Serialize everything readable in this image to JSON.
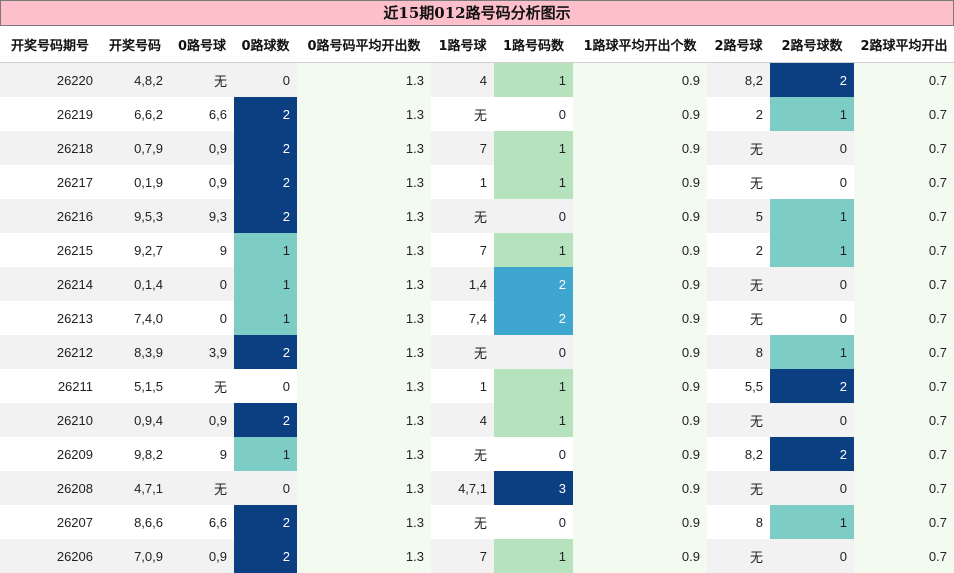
{
  "title": "近15期012路号码分析图示",
  "headers": [
    "开奖号码期号",
    "开奖号码",
    "0路号球",
    "0路球数",
    "0路号码平均开出数",
    "1路号球",
    "1路号码数",
    "1路球平均开出个数",
    "2路号球",
    "2路号球数",
    "2路球平均开出"
  ],
  "rows": [
    {
      "issue": "26220",
      "nums": "4,8,2",
      "r0": "无",
      "r0n": "0",
      "r0avg": "1.3",
      "r1": "4",
      "r1n": "1",
      "r1avg": "0.9",
      "r2": "8,2",
      "r2n": "2",
      "r2avg": "0.7"
    },
    {
      "issue": "26219",
      "nums": "6,6,2",
      "r0": "6,6",
      "r0n": "2",
      "r0avg": "1.3",
      "r1": "无",
      "r1n": "0",
      "r1avg": "0.9",
      "r2": "2",
      "r2n": "1",
      "r2avg": "0.7"
    },
    {
      "issue": "26218",
      "nums": "0,7,9",
      "r0": "0,9",
      "r0n": "2",
      "r0avg": "1.3",
      "r1": "7",
      "r1n": "1",
      "r1avg": "0.9",
      "r2": "无",
      "r2n": "0",
      "r2avg": "0.7"
    },
    {
      "issue": "26217",
      "nums": "0,1,9",
      "r0": "0,9",
      "r0n": "2",
      "r0avg": "1.3",
      "r1": "1",
      "r1n": "1",
      "r1avg": "0.9",
      "r2": "无",
      "r2n": "0",
      "r2avg": "0.7"
    },
    {
      "issue": "26216",
      "nums": "9,5,3",
      "r0": "9,3",
      "r0n": "2",
      "r0avg": "1.3",
      "r1": "无",
      "r1n": "0",
      "r1avg": "0.9",
      "r2": "5",
      "r2n": "1",
      "r2avg": "0.7"
    },
    {
      "issue": "26215",
      "nums": "9,2,7",
      "r0": "9",
      "r0n": "1",
      "r0avg": "1.3",
      "r1": "7",
      "r1n": "1",
      "r1avg": "0.9",
      "r2": "2",
      "r2n": "1",
      "r2avg": "0.7"
    },
    {
      "issue": "26214",
      "nums": "0,1,4",
      "r0": "0",
      "r0n": "1",
      "r0avg": "1.3",
      "r1": "1,4",
      "r1n": "2",
      "r1avg": "0.9",
      "r2": "无",
      "r2n": "0",
      "r2avg": "0.7"
    },
    {
      "issue": "26213",
      "nums": "7,4,0",
      "r0": "0",
      "r0n": "1",
      "r0avg": "1.3",
      "r1": "7,4",
      "r1n": "2",
      "r1avg": "0.9",
      "r2": "无",
      "r2n": "0",
      "r2avg": "0.7"
    },
    {
      "issue": "26212",
      "nums": "8,3,9",
      "r0": "3,9",
      "r0n": "2",
      "r0avg": "1.3",
      "r1": "无",
      "r1n": "0",
      "r1avg": "0.9",
      "r2": "8",
      "r2n": "1",
      "r2avg": "0.7"
    },
    {
      "issue": "26211",
      "nums": "5,1,5",
      "r0": "无",
      "r0n": "0",
      "r0avg": "1.3",
      "r1": "1",
      "r1n": "1",
      "r1avg": "0.9",
      "r2": "5,5",
      "r2n": "2",
      "r2avg": "0.7"
    },
    {
      "issue": "26210",
      "nums": "0,9,4",
      "r0": "0,9",
      "r0n": "2",
      "r0avg": "1.3",
      "r1": "4",
      "r1n": "1",
      "r1avg": "0.9",
      "r2": "无",
      "r2n": "0",
      "r2avg": "0.7"
    },
    {
      "issue": "26209",
      "nums": "9,8,2",
      "r0": "9",
      "r0n": "1",
      "r0avg": "1.3",
      "r1": "无",
      "r1n": "0",
      "r1avg": "0.9",
      "r2": "8,2",
      "r2n": "2",
      "r2avg": "0.7"
    },
    {
      "issue": "26208",
      "nums": "4,7,1",
      "r0": "无",
      "r0n": "0",
      "r0avg": "1.3",
      "r1": "4,7,1",
      "r1n": "3",
      "r1avg": "0.9",
      "r2": "无",
      "r2n": "0",
      "r2avg": "0.7"
    },
    {
      "issue": "26207",
      "nums": "8,6,6",
      "r0": "6,6",
      "r0n": "2",
      "r0avg": "1.3",
      "r1": "无",
      "r1n": "0",
      "r1avg": "0.9",
      "r2": "8",
      "r2n": "1",
      "r2avg": "0.7"
    },
    {
      "issue": "26206",
      "nums": "7,0,9",
      "r0": "0,9",
      "r0n": "2",
      "r0avg": "1.3",
      "r1": "7",
      "r1n": "1",
      "r1avg": "0.9",
      "r2": "无",
      "r2n": "0",
      "r2avg": "0.7"
    }
  ],
  "colors": {
    "title_bg": "#fdbfca",
    "count_1_r0r2": "#7ecdc4",
    "count_1_r1": "#b6e3bd",
    "count_2_dark": "#0b3f82",
    "count_2_light": "#3fa6cf",
    "count_3": "#0b3f82",
    "avg_bg": "#f3faf0"
  }
}
